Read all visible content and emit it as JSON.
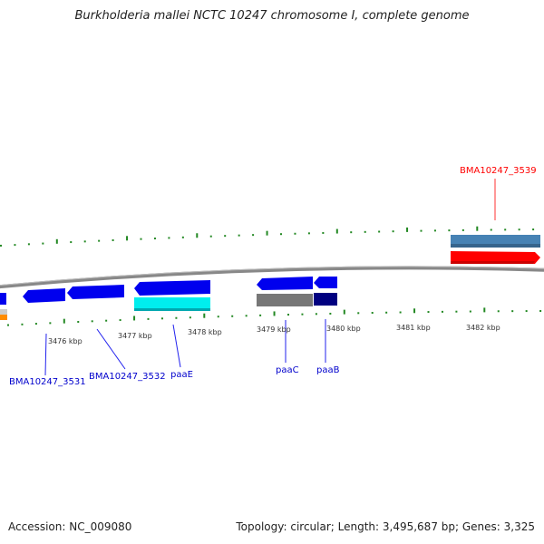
{
  "title": "Burkholderia mallei NCTC 10247 chromosome I, complete genome",
  "footer": {
    "accession": "Accession: NC_009080",
    "summary": "Topology: circular; Length: 3,495,687 bp; Genes: 3,325"
  },
  "scale_labels": [
    "3476 kbp",
    "3477 kbp",
    "3478 kbp",
    "3479 kbp",
    "3480 kbp",
    "3481 kbp",
    "3482 kbp"
  ],
  "gene_labels": [
    {
      "text": "BMA10247_3539",
      "color": "#ff0000"
    },
    {
      "text": "BMA10247_3531",
      "color": "#0000cc"
    },
    {
      "text": "BMA10247_3532",
      "color": "#0000cc"
    },
    {
      "text": "paaE",
      "color": "#0000cc"
    },
    {
      "text": "paaC",
      "color": "#0000cc"
    },
    {
      "text": "paaB",
      "color": "#0000cc"
    }
  ],
  "colors": {
    "backbone": "#808080",
    "tick": "#228822",
    "forward_cds": "#ff0000",
    "reverse_cds": "#0000ee",
    "gene_bar": "#4682b4",
    "cyan": "#00e5ee",
    "grey": "#777777",
    "navy": "#000080",
    "orange": "#ff8c00"
  }
}
